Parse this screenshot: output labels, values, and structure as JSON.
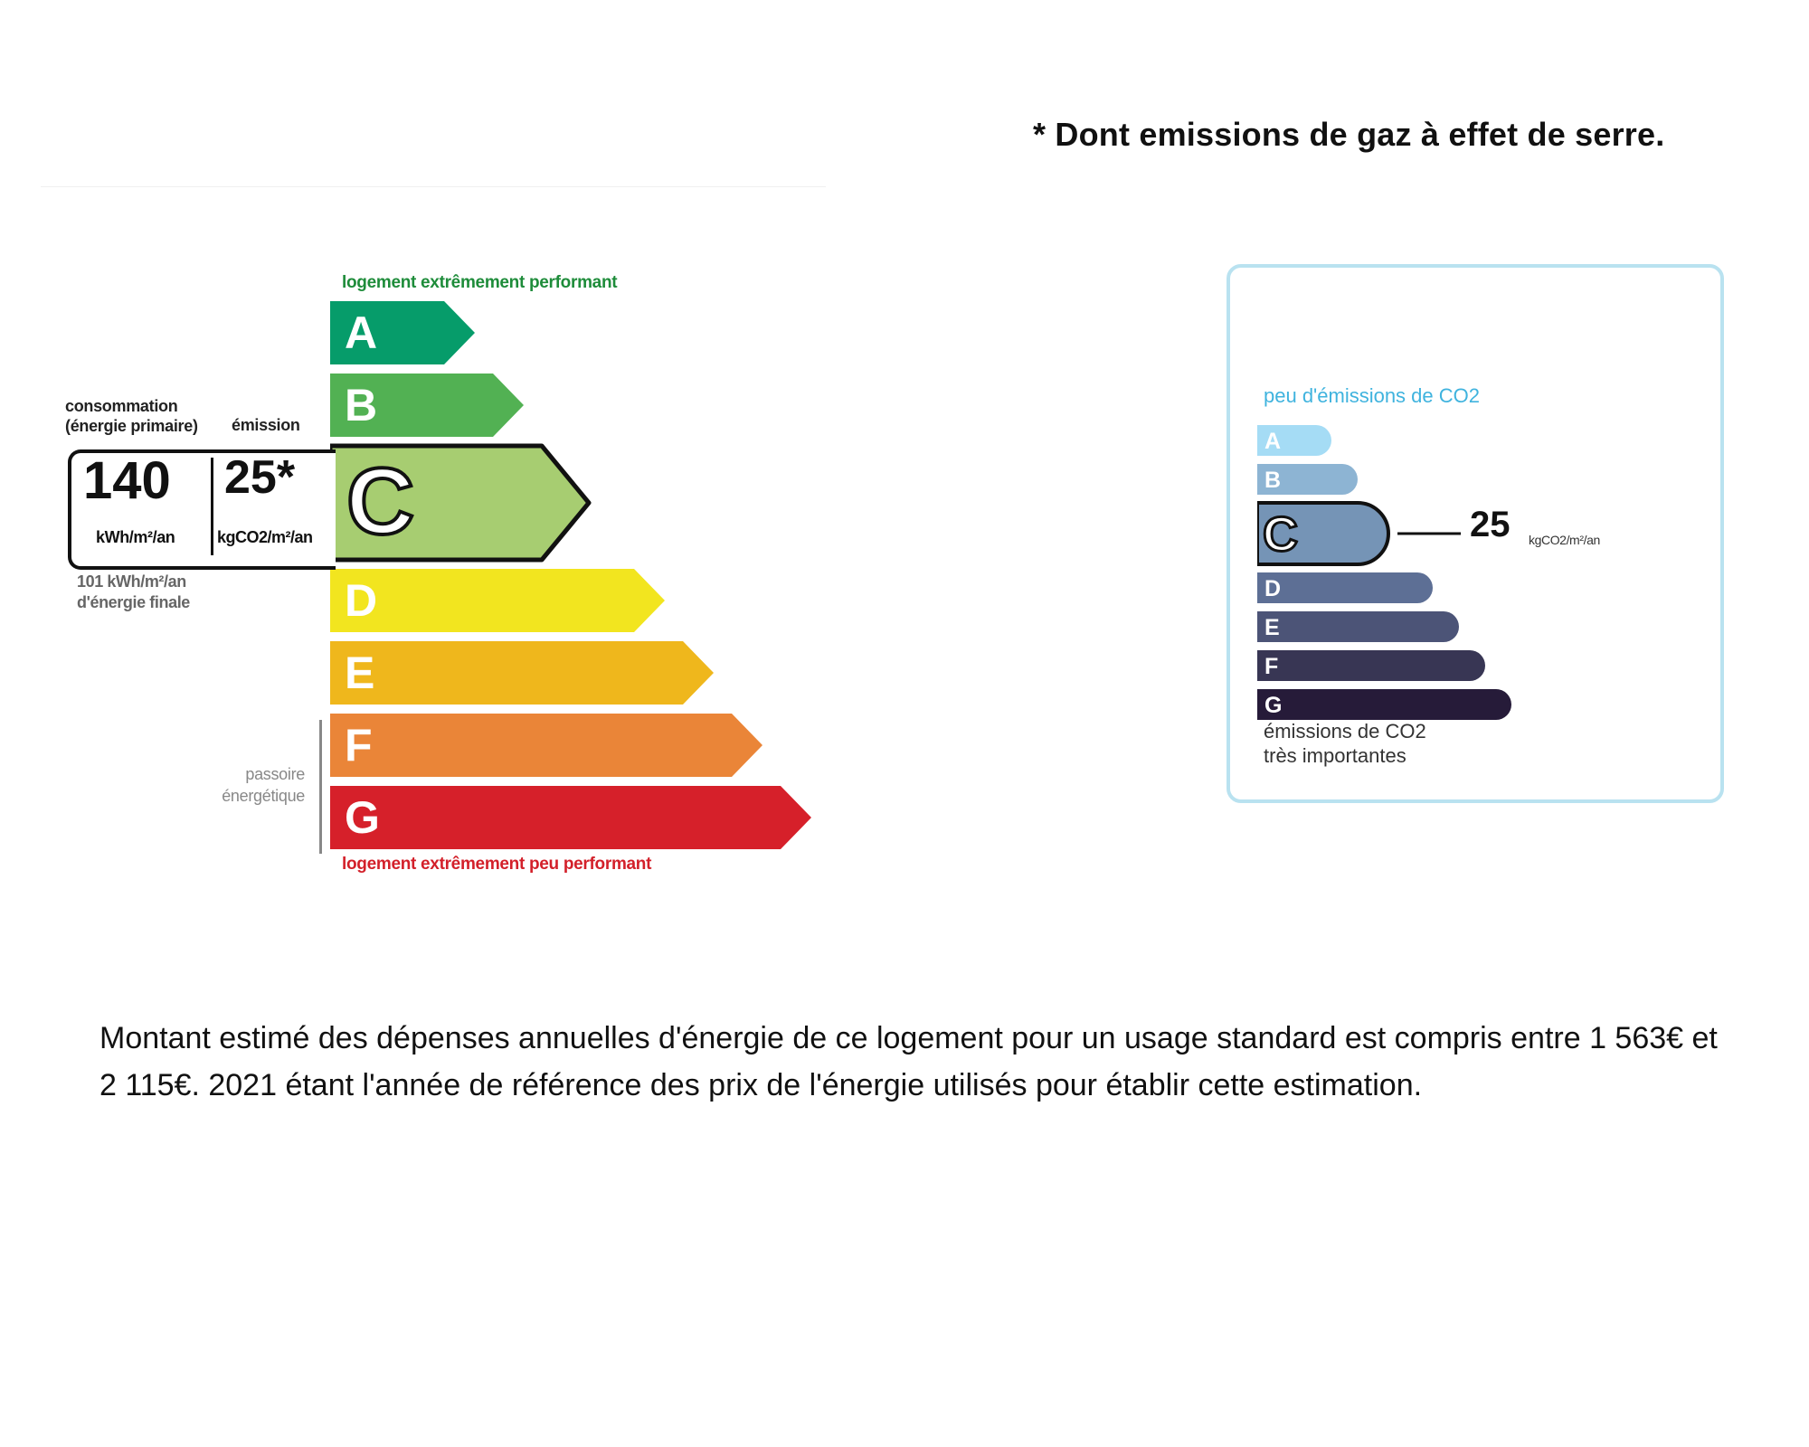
{
  "note": {
    "text": "* Dont emissions de gaz à effet de serre."
  },
  "energy_label": {
    "top_label": "logement extrêmement performant",
    "bottom_label": "logement extrêmement peu performant",
    "consumption_title_line1": "consommation",
    "consumption_title_line2": "(énergie primaire)",
    "emission_title": "émission",
    "consumption_value": "140",
    "consumption_unit": "kWh/m²/an",
    "emission_value": "25*",
    "emission_unit": "kgCO2/m²/an",
    "final_energy_line1": "101 kWh/m²/an",
    "final_energy_line2": "d'énergie finale",
    "passoire_line1": "passoire",
    "passoire_line2": "énergétique",
    "active_class": "C",
    "classes": [
      {
        "letter": "A",
        "color": "#069c6a"
      },
      {
        "letter": "B",
        "color": "#52b153"
      },
      {
        "letter": "C",
        "color": "#a7cd71"
      },
      {
        "letter": "D",
        "color": "#f2e51f"
      },
      {
        "letter": "E",
        "color": "#efb71c"
      },
      {
        "letter": "F",
        "color": "#ea8538"
      },
      {
        "letter": "G",
        "color": "#d6202a"
      }
    ]
  },
  "co2_label": {
    "top_label": "peu d'émissions de CO2",
    "bottom_label_line1": "émissions de CO2",
    "bottom_label_line2": "très importantes",
    "value": "25",
    "unit": "kgCO2/m²/an",
    "active_class": "C",
    "classes": [
      {
        "letter": "A",
        "color": "#a5dcf5"
      },
      {
        "letter": "B",
        "color": "#8db4d3"
      },
      {
        "letter": "C",
        "color": "#7594b6"
      },
      {
        "letter": "D",
        "color": "#5d6f95"
      },
      {
        "letter": "E",
        "color": "#4c5477"
      },
      {
        "letter": "F",
        "color": "#383654"
      },
      {
        "letter": "G",
        "color": "#261b39"
      }
    ]
  },
  "estimate": {
    "text": "Montant estimé des dépenses annuelles d'énergie de ce logement pour un usage standard est compris entre 1 563€ et 2 115€. 2021 étant l'année de référence des prix de l'énergie utilisés pour établir cette estimation."
  }
}
